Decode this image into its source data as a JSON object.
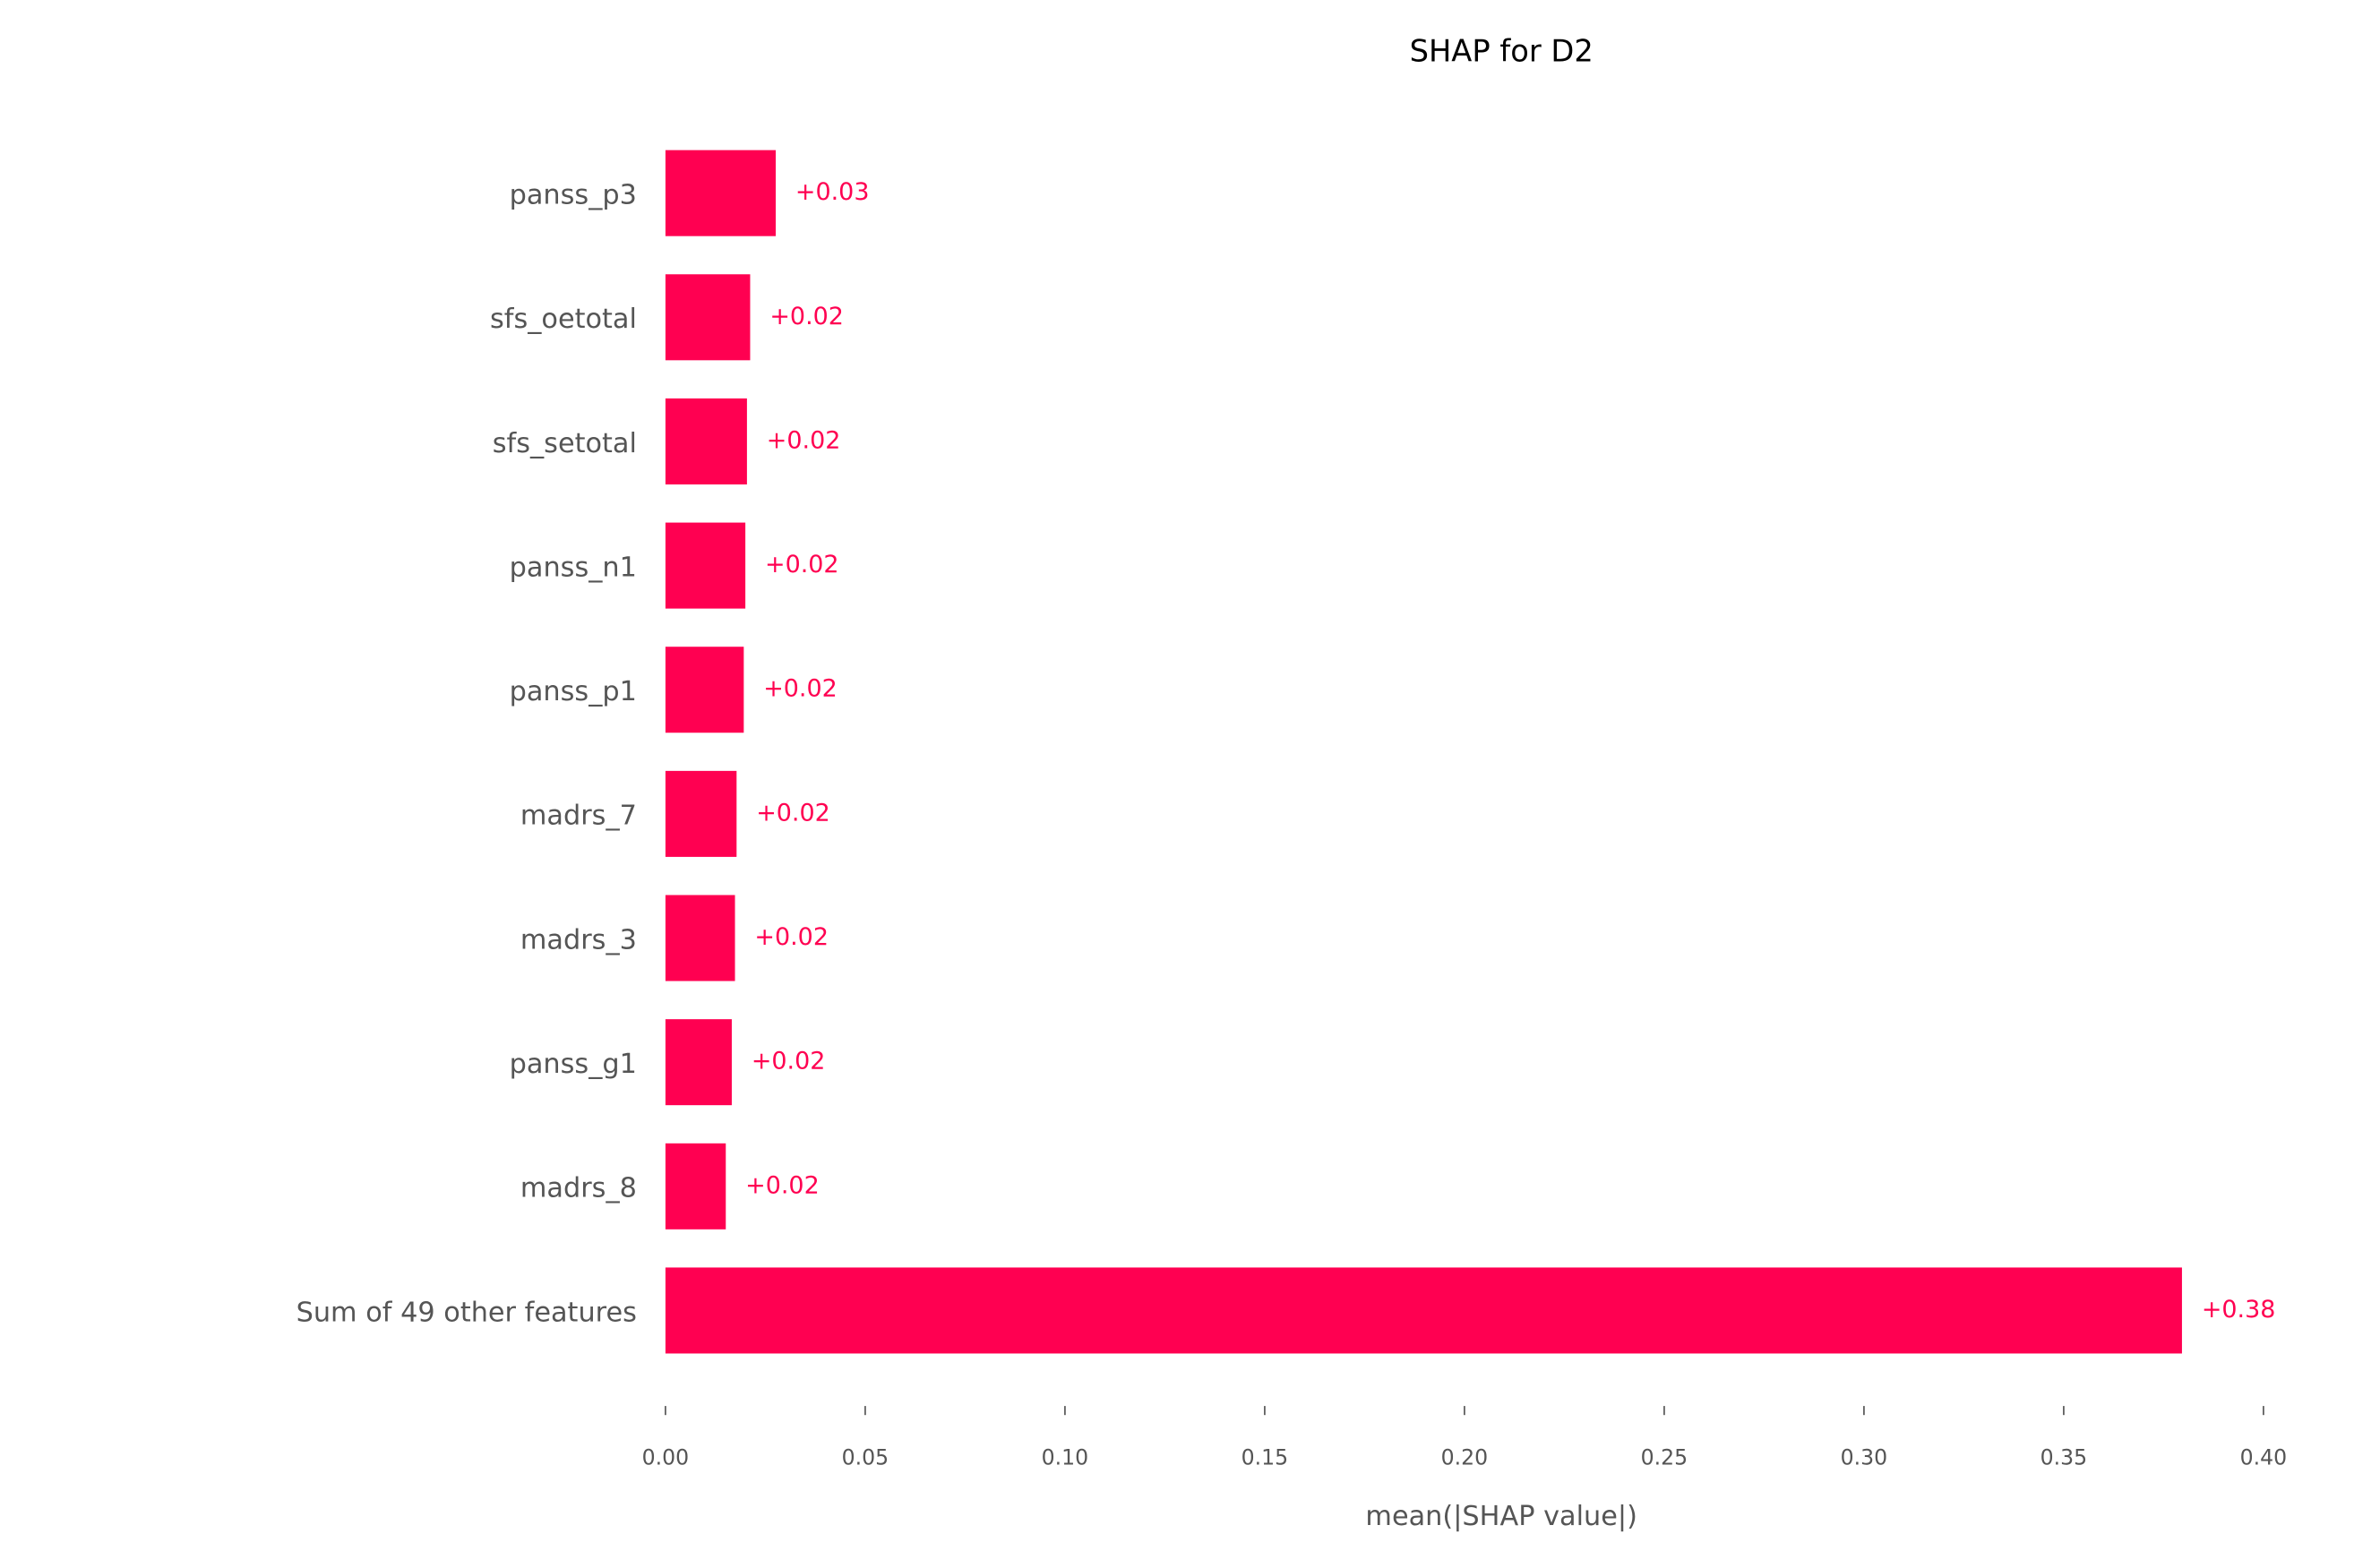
{
  "chart_data": {
    "type": "bar",
    "orientation": "horizontal",
    "title": "SHAP for D2",
    "xlabel": "mean(|SHAP value|)",
    "categories": [
      "panss_p3",
      "sfs_oetotal",
      "sfs_setotal",
      "panss_n1",
      "panss_p1",
      "madrs_7",
      "madrs_3",
      "panss_g1",
      "madrs_8",
      "Sum of 49 other features"
    ],
    "values": [
      0.0276,
      0.0212,
      0.0204,
      0.02,
      0.0196,
      0.0178,
      0.0174,
      0.0166,
      0.0151,
      0.3796
    ],
    "value_labels": [
      "+0.03",
      "+0.02",
      "+0.02",
      "+0.02",
      "+0.02",
      "+0.02",
      "+0.02",
      "+0.02",
      "+0.02",
      "+0.38"
    ],
    "color": "#ff0051",
    "xlim": [
      0,
      0.4
    ],
    "xticks": [
      {
        "value": 0,
        "label": "0.00"
      },
      0.05,
      {
        "value": 0.1,
        "label": "0.10"
      },
      0.15,
      {
        "value": 0.2,
        "label": "0.20"
      },
      0.25,
      {
        "value": 0.3,
        "label": "0.30"
      },
      0.35,
      {
        "value": 0.4,
        "label": "0.40"
      }
    ]
  }
}
